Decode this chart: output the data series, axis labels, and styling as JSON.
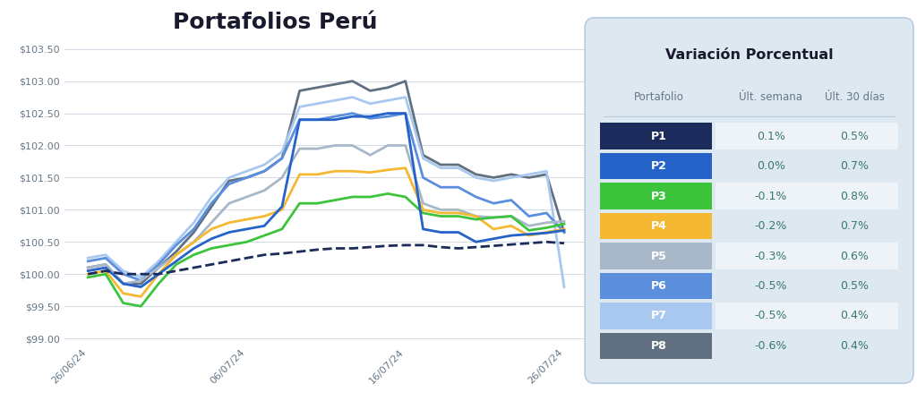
{
  "title": "Portafolios Perú",
  "table_title": "Variación Porcentual",
  "x_labels": [
    "26/06/24",
    "06/07/24",
    "16/07/24",
    "26/07/24"
  ],
  "yticks": [
    99.0,
    99.5,
    100.0,
    100.5,
    101.0,
    101.5,
    102.0,
    102.5,
    103.0,
    103.5
  ],
  "ylim": [
    98.9,
    103.7
  ],
  "portfolios": [
    "P1",
    "P2",
    "P3",
    "P4",
    "P5",
    "P6",
    "P7",
    "P8"
  ],
  "colors": {
    "P1": "#1a2b5c",
    "P2": "#2563c8",
    "P3": "#3dc43d",
    "P4": "#f5b832",
    "P5": "#a8b8c8",
    "P6": "#5b8fde",
    "P7": "#a8c8f0",
    "P8": "#607080"
  },
  "linestyles": {
    "P1": "dashed",
    "P2": "solid",
    "P3": "solid",
    "P4": "solid",
    "P5": "solid",
    "P6": "solid",
    "P7": "solid",
    "P8": "solid"
  },
  "linewidths": {
    "P1": 2.0,
    "P2": 2.0,
    "P3": 2.0,
    "P4": 2.0,
    "P5": 2.0,
    "P6": 2.0,
    "P7": 2.0,
    "P8": 2.0
  },
  "series": {
    "P1": [
      100.0,
      100.05,
      100.0,
      100.0,
      100.0,
      100.05,
      100.1,
      100.15,
      100.2,
      100.25,
      100.3,
      100.32,
      100.35,
      100.38,
      100.4,
      100.4,
      100.42,
      100.44,
      100.45,
      100.45,
      100.42,
      100.4,
      100.42,
      100.44,
      100.46,
      100.48,
      100.5,
      100.48
    ],
    "P2": [
      100.05,
      100.1,
      99.85,
      99.8,
      100.0,
      100.2,
      100.4,
      100.55,
      100.65,
      100.7,
      100.75,
      101.05,
      102.4,
      102.4,
      102.4,
      102.45,
      102.45,
      102.5,
      102.5,
      100.7,
      100.65,
      100.65,
      100.5,
      100.55,
      100.6,
      100.62,
      100.64,
      100.68
    ],
    "P3": [
      99.95,
      100.0,
      99.55,
      99.5,
      99.85,
      100.15,
      100.3,
      100.4,
      100.45,
      100.5,
      100.6,
      100.7,
      101.1,
      101.1,
      101.15,
      101.2,
      101.2,
      101.25,
      101.2,
      100.95,
      100.9,
      100.9,
      100.85,
      100.88,
      100.9,
      100.68,
      100.72,
      100.78
    ],
    "P4": [
      100.0,
      100.05,
      99.7,
      99.65,
      100.0,
      100.3,
      100.5,
      100.7,
      100.8,
      100.85,
      100.9,
      101.0,
      101.55,
      101.55,
      101.6,
      101.6,
      101.58,
      101.62,
      101.65,
      101.0,
      100.95,
      100.95,
      100.9,
      100.7,
      100.75,
      100.6,
      100.65,
      100.7
    ],
    "P5": [
      100.1,
      100.15,
      99.85,
      99.9,
      100.1,
      100.3,
      100.5,
      100.8,
      101.1,
      101.2,
      101.3,
      101.5,
      101.95,
      101.95,
      102.0,
      102.0,
      101.85,
      102.0,
      102.0,
      101.1,
      101.0,
      101.0,
      100.9,
      100.88,
      100.9,
      100.75,
      100.8,
      100.82
    ],
    "P6": [
      100.2,
      100.25,
      100.0,
      99.9,
      100.15,
      100.45,
      100.7,
      101.1,
      101.4,
      101.5,
      101.6,
      101.8,
      102.4,
      102.4,
      102.45,
      102.5,
      102.42,
      102.45,
      102.5,
      101.5,
      101.35,
      101.35,
      101.2,
      101.1,
      101.15,
      100.9,
      100.95,
      100.65
    ],
    "P7": [
      100.25,
      100.3,
      100.05,
      99.95,
      100.2,
      100.5,
      100.8,
      101.2,
      101.5,
      101.6,
      101.7,
      101.9,
      102.6,
      102.65,
      102.7,
      102.75,
      102.65,
      102.7,
      102.75,
      101.8,
      101.65,
      101.65,
      101.5,
      101.45,
      101.5,
      101.55,
      101.6,
      99.8
    ],
    "P8": [
      100.1,
      100.15,
      99.85,
      99.85,
      100.1,
      100.35,
      100.65,
      101.05,
      101.45,
      101.5,
      101.6,
      101.8,
      102.85,
      102.9,
      102.95,
      103.0,
      102.85,
      102.9,
      103.0,
      101.85,
      101.7,
      101.7,
      101.55,
      101.5,
      101.55,
      101.5,
      101.55,
      100.65
    ]
  },
  "table_headers": [
    "Portafolio",
    "Últ. semana",
    "Últ. 30 días"
  ],
  "table_data": [
    [
      "P1",
      "0.1%",
      "0.5%"
    ],
    [
      "P2",
      "0.0%",
      "0.7%"
    ],
    [
      "P3",
      "-0.1%",
      "0.8%"
    ],
    [
      "P4",
      "-0.2%",
      "0.7%"
    ],
    [
      "P5",
      "-0.3%",
      "0.6%"
    ],
    [
      "P6",
      "-0.5%",
      "0.5%"
    ],
    [
      "P7",
      "-0.5%",
      "0.4%"
    ],
    [
      "P8",
      "-0.6%",
      "0.4%"
    ]
  ],
  "table_row_colors": [
    "#1a2b5c",
    "#2563c8",
    "#3dc43d",
    "#f5b832",
    "#a8b8c8",
    "#5b8fde",
    "#a8c8f0",
    "#607080"
  ],
  "table_bg": "#dde8f0",
  "value_color": "#3a7a6a",
  "background_color": "#ffffff"
}
